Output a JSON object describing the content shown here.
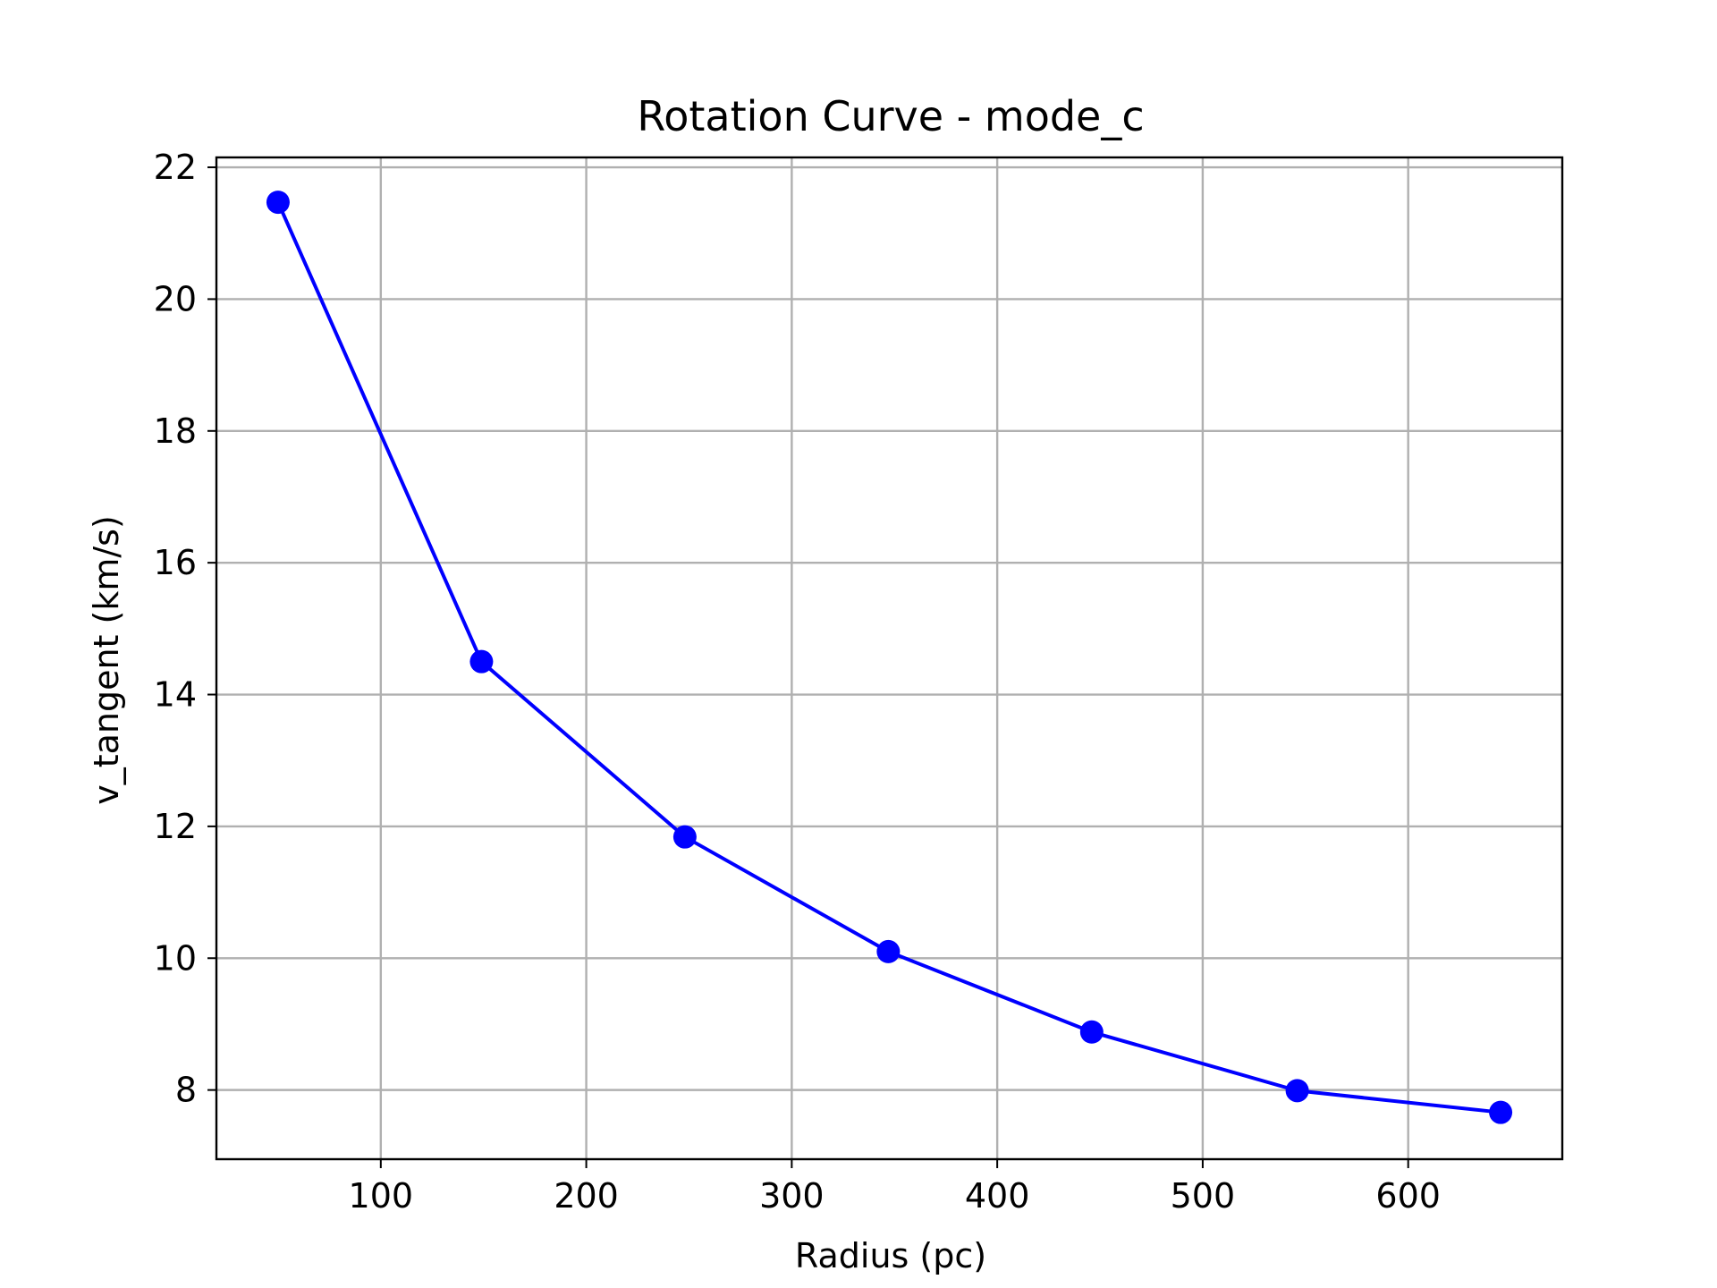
{
  "chart_data": {
    "type": "line",
    "title": "Rotation Curve - mode_c",
    "xlabel": "Radius (pc)",
    "ylabel": "v_tangent (km/s)",
    "xlim": [
      20,
      675
    ],
    "ylim": [
      6.95,
      22.15
    ],
    "xticks": [
      100,
      200,
      300,
      400,
      500,
      600
    ],
    "yticks": [
      8,
      10,
      12,
      14,
      16,
      18,
      20,
      22
    ],
    "grid": true,
    "series": [
      {
        "color": "#0000ff",
        "marker": "circle",
        "x": [
          50,
          149,
          248,
          347,
          446,
          546,
          645
        ],
        "y": [
          21.47,
          14.5,
          11.84,
          10.1,
          8.88,
          7.99,
          7.66
        ]
      }
    ]
  }
}
